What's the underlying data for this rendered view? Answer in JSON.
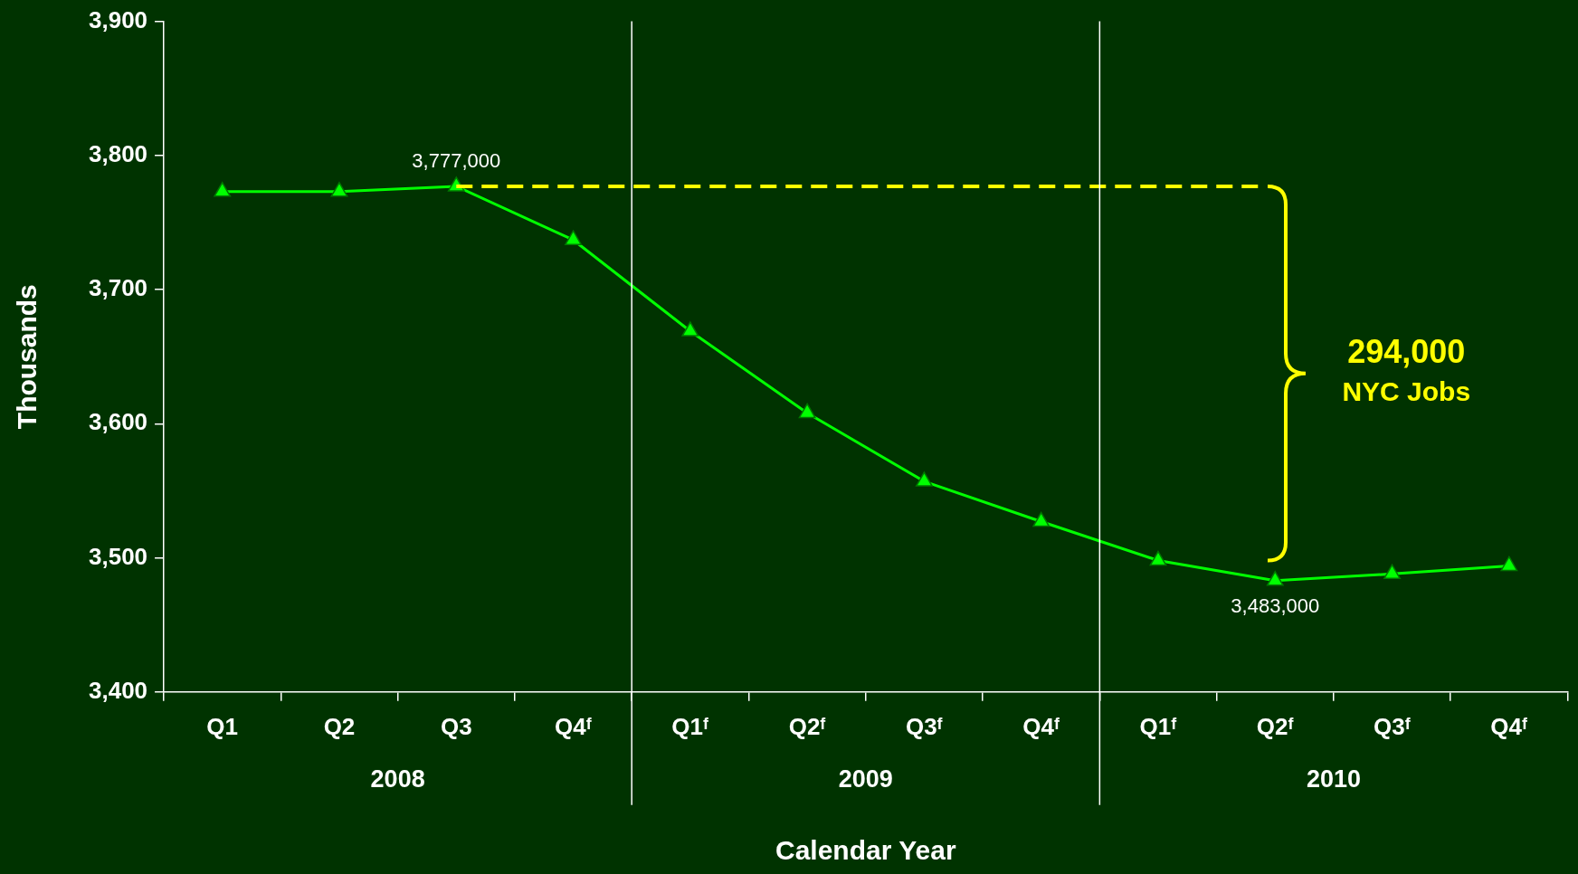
{
  "chart_data": {
    "type": "line",
    "xlabel": "Calendar Year",
    "ylabel": "Thousands",
    "categories": [
      "Q1",
      "Q2",
      "Q3",
      "Q4ᶠ",
      "Q1ᶠ",
      "Q2ᶠ",
      "Q3ᶠ",
      "Q4ᶠ",
      "Q1ᶠ",
      "Q2ᶠ",
      "Q3ᶠ",
      "Q4ᶠ"
    ],
    "series": [
      {
        "color": "#00ff00",
        "values": [
          3773,
          3773,
          3777,
          3737,
          3669,
          3608,
          3557,
          3527,
          3498,
          3483,
          3488,
          3494
        ]
      }
    ],
    "ylim": [
      3400,
      3900
    ],
    "yticks": [
      {
        "value": 3400,
        "label": "3,400"
      },
      {
        "value": 3500,
        "label": "3,500"
      },
      {
        "value": 3600,
        "label": "3,600"
      },
      {
        "value": 3700,
        "label": "3,700"
      },
      {
        "value": 3800,
        "label": "3,800"
      },
      {
        "value": 3900,
        "label": "3,900"
      }
    ],
    "ref_lines": [
      {
        "axis": "y",
        "value": 3777,
        "color": "#ffff00",
        "line_style": "dashed"
      }
    ],
    "annotations": [
      {
        "text": "3,777,000",
        "x": "Q3",
        "y": 3777
      },
      {
        "text": "3,483,000",
        "y": 3483
      },
      "2008",
      "2009",
      "2010",
      "294,000",
      "NYC Jobs"
    ],
    "marker": "triangle",
    "grid": false,
    "legend": false
  }
}
